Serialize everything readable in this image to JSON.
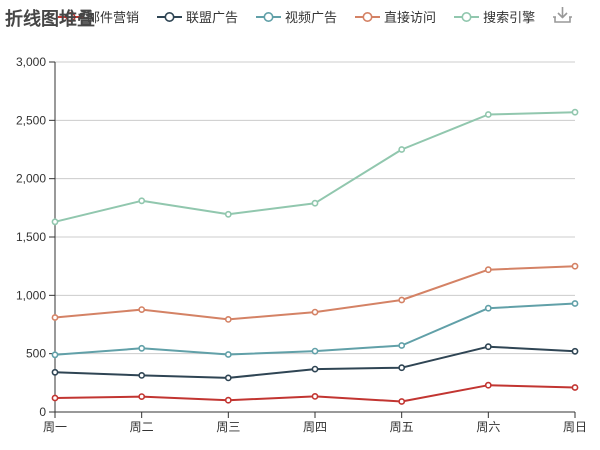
{
  "title": "折线图堆叠",
  "toolbox": {
    "save_icon": "save-as-image"
  },
  "chart_data": {
    "type": "line",
    "stacked": true,
    "title": "折线图堆叠",
    "categories": [
      "周一",
      "周二",
      "周三",
      "周四",
      "周五",
      "周六",
      "周日"
    ],
    "series": [
      {
        "name": "邮件营销",
        "color": "#c23531",
        "values": [
          120,
          132,
          101,
          134,
          90,
          230,
          210
        ]
      },
      {
        "name": "联盟广告",
        "color": "#2f4554",
        "values": [
          220,
          182,
          191,
          234,
          290,
          330,
          310
        ]
      },
      {
        "name": "视频广告",
        "color": "#61a0a8",
        "values": [
          150,
          232,
          201,
          154,
          190,
          330,
          410
        ]
      },
      {
        "name": "直接访问",
        "color": "#d48265",
        "values": [
          320,
          332,
          301,
          334,
          390,
          330,
          320
        ]
      },
      {
        "name": "搜索引擎",
        "color": "#91c7ae",
        "values": [
          820,
          932,
          901,
          934,
          1290,
          1330,
          1320
        ]
      }
    ],
    "stacked_totals": {
      "邮件营销": [
        120,
        132,
        101,
        134,
        90,
        230,
        210
      ],
      "联盟广告": [
        340,
        314,
        292,
        368,
        380,
        560,
        520
      ],
      "视频广告": [
        490,
        546,
        493,
        522,
        570,
        890,
        930
      ],
      "直接访问": [
        810,
        878,
        794,
        856,
        960,
        1220,
        1250
      ],
      "搜索引擎": [
        1630,
        1810,
        1695,
        1790,
        2250,
        2550,
        2570
      ]
    },
    "xlabel": "",
    "ylabel": "",
    "ylim": [
      0,
      3000
    ],
    "ytick_step": 500,
    "ytick_labels": [
      "0",
      "500",
      "1,000",
      "1,500",
      "2,000",
      "2,500",
      "3,000"
    ],
    "grid": true,
    "legend_position": "top-center",
    "marker": "empty-circle"
  },
  "colors": {
    "background": "#ffffff",
    "axis_line": "#333333",
    "axis_label": "#333333",
    "gridline": "#cccccc",
    "legend_text": "#333333",
    "title_text": "#464646",
    "toolbox_icon": "#999999"
  }
}
